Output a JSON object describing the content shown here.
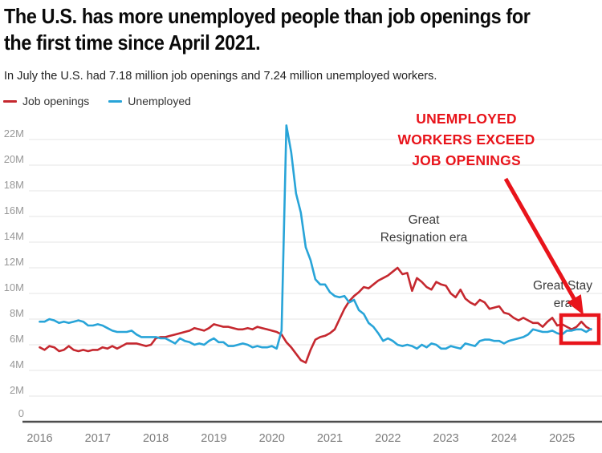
{
  "header": {
    "title_line1": "The U.S. has more unemployed people than job openings for",
    "title_line2": "the first time since April 2021.",
    "subtitle": "In July the U.S. had 7.18 million job openings and 7.24 million unemployed workers."
  },
  "legend": [
    {
      "label": "Job openings",
      "color": "#c5282f"
    },
    {
      "label": "Unemployed",
      "color": "#28a4d8"
    }
  ],
  "annotations": {
    "callout": {
      "lines": [
        "UNEMPLOYED",
        "WORKERS EXCEED",
        "JOB OPENINGS"
      ],
      "color": "#e8141b"
    },
    "great_resignation": {
      "line1": "Great",
      "line2": "Resignation era"
    },
    "great_stay": {
      "line1": "Great Stay",
      "line2": "era"
    }
  },
  "chart_data": {
    "type": "line",
    "x_start": "2016-01",
    "x_end": "2025-07",
    "frequency": "monthly",
    "x_tick_labels": [
      "2016",
      "2017",
      "2018",
      "2019",
      "2020",
      "2021",
      "2022",
      "2023",
      "2024",
      "2025"
    ],
    "y_ticks": [
      {
        "value": 0,
        "label": "0"
      },
      {
        "value": 2,
        "label": "2M"
      },
      {
        "value": 4,
        "label": "4M"
      },
      {
        "value": 6,
        "label": "6M"
      },
      {
        "value": 8,
        "label": "8M"
      },
      {
        "value": 10,
        "label": "10M"
      },
      {
        "value": 12,
        "label": "12M"
      },
      {
        "value": 14,
        "label": "14M"
      },
      {
        "value": 16,
        "label": "16M"
      },
      {
        "value": 18,
        "label": "18M"
      },
      {
        "value": 20,
        "label": "20M"
      },
      {
        "value": 22,
        "label": "22M"
      }
    ],
    "ylim": [
      0,
      24
    ],
    "unit": "millions of people",
    "grid": "horizontal",
    "legend_position": "top-left",
    "series": [
      {
        "name": "Job openings",
        "color": "#c5282f",
        "values": [
          5.8,
          5.6,
          5.9,
          5.8,
          5.5,
          5.6,
          5.9,
          5.6,
          5.5,
          5.6,
          5.5,
          5.6,
          5.6,
          5.8,
          5.7,
          5.9,
          5.7,
          5.9,
          6.1,
          6.1,
          6.1,
          6.0,
          5.9,
          6.0,
          6.5,
          6.6,
          6.6,
          6.7,
          6.8,
          6.9,
          7.0,
          7.1,
          7.3,
          7.2,
          7.1,
          7.3,
          7.6,
          7.5,
          7.4,
          7.4,
          7.3,
          7.2,
          7.2,
          7.3,
          7.2,
          7.4,
          7.3,
          7.2,
          7.1,
          7.0,
          6.8,
          6.2,
          5.8,
          5.3,
          4.8,
          4.6,
          5.6,
          6.4,
          6.6,
          6.7,
          6.9,
          7.2,
          8.0,
          8.8,
          9.4,
          9.8,
          10.1,
          10.5,
          10.4,
          10.7,
          11.0,
          11.2,
          11.4,
          11.7,
          12.0,
          11.5,
          11.6,
          10.2,
          11.2,
          10.9,
          10.5,
          10.3,
          10.9,
          10.7,
          10.6,
          10.0,
          9.7,
          10.3,
          9.6,
          9.3,
          9.1,
          9.5,
          9.3,
          8.8,
          8.9,
          9.0,
          8.5,
          8.4,
          8.1,
          7.9,
          8.1,
          7.9,
          7.7,
          7.7,
          7.4,
          7.8,
          8.1,
          7.5,
          7.6,
          7.4,
          7.2,
          7.4,
          7.8,
          7.4,
          7.18
        ]
      },
      {
        "name": "Unemployed",
        "color": "#28a4d8",
        "values": [
          7.8,
          7.8,
          8.0,
          7.9,
          7.7,
          7.8,
          7.7,
          7.8,
          7.9,
          7.8,
          7.5,
          7.5,
          7.6,
          7.5,
          7.3,
          7.1,
          7.0,
          7.0,
          7.0,
          7.1,
          6.8,
          6.6,
          6.6,
          6.6,
          6.6,
          6.5,
          6.5,
          6.3,
          6.1,
          6.5,
          6.3,
          6.2,
          6.0,
          6.1,
          6.0,
          6.3,
          6.5,
          6.2,
          6.2,
          5.9,
          5.9,
          6.0,
          6.1,
          6.0,
          5.8,
          5.9,
          5.8,
          5.8,
          5.9,
          5.7,
          7.1,
          23.1,
          21.0,
          17.8,
          16.3,
          13.6,
          12.6,
          11.1,
          10.7,
          10.7,
          10.1,
          9.8,
          9.7,
          9.8,
          9.3,
          9.5,
          8.7,
          8.4,
          7.7,
          7.4,
          6.9,
          6.3,
          6.5,
          6.3,
          6.0,
          5.9,
          6.0,
          5.9,
          5.7,
          6.0,
          5.8,
          6.1,
          6.0,
          5.7,
          5.7,
          5.9,
          5.8,
          5.7,
          6.1,
          6.0,
          5.9,
          6.3,
          6.4,
          6.4,
          6.3,
          6.3,
          6.1,
          6.3,
          6.4,
          6.5,
          6.6,
          6.8,
          7.2,
          7.1,
          7.0,
          7.0,
          7.1,
          6.9,
          6.8,
          7.1,
          7.1,
          7.2,
          7.2,
          7.0,
          7.24
        ]
      }
    ],
    "title": "The U.S. has more unemployed people than job openings for the first time since April 2021.",
    "xlabel": "",
    "ylabel": ""
  }
}
